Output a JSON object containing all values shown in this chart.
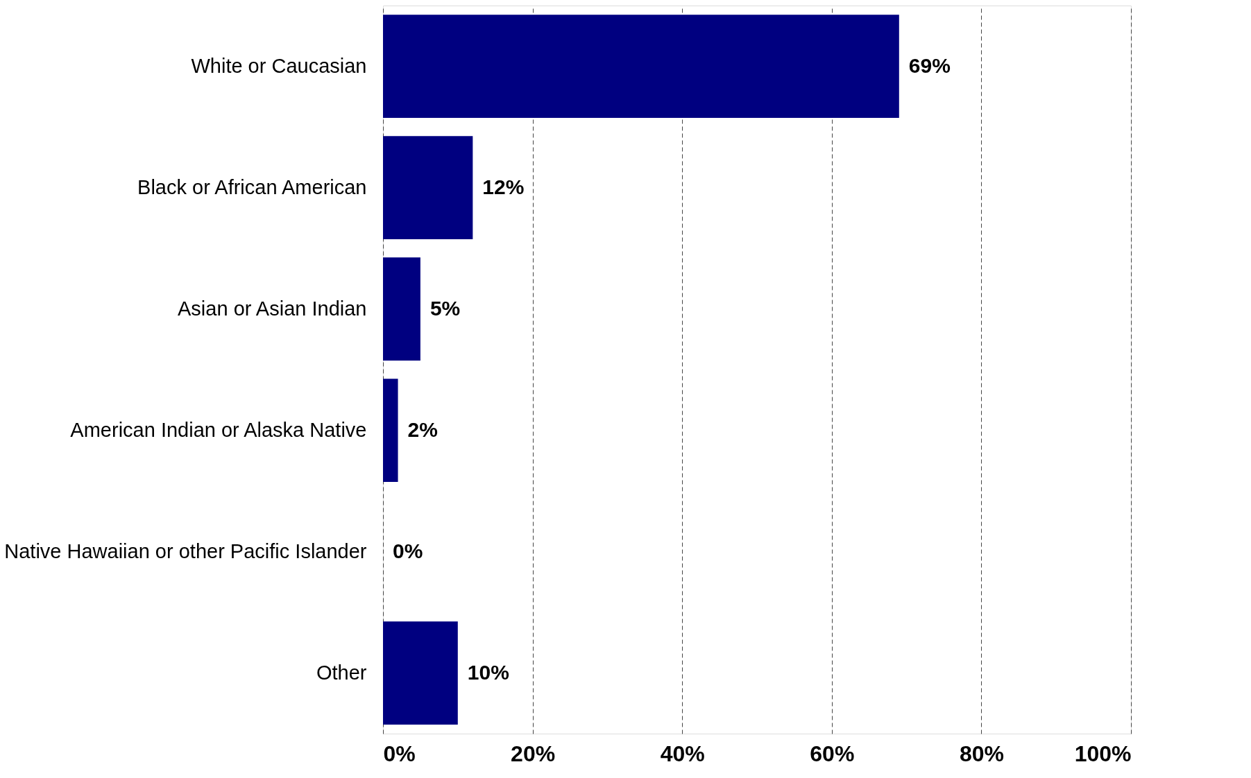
{
  "chart_data": {
    "type": "bar",
    "orientation": "horizontal",
    "categories": [
      "White or Caucasian",
      "Black or African American",
      "Asian or Asian Indian",
      "American Indian or Alaska Native",
      "Native Hawaiian or other Pacific Islander",
      "Other"
    ],
    "values": [
      69,
      12,
      5,
      2,
      0,
      10
    ],
    "value_labels": [
      "69%",
      "12%",
      "5%",
      "2%",
      "0%",
      "10%"
    ],
    "color": "#000080",
    "xlim": [
      0,
      100
    ],
    "xticks": [
      {
        "value": 0,
        "label": "0%"
      },
      {
        "value": 20,
        "label": "20%"
      },
      {
        "value": 40,
        "label": "40%"
      },
      {
        "value": 60,
        "label": "60%"
      },
      {
        "value": 80,
        "label": "80%"
      },
      {
        "value": 100,
        "label": "100%"
      }
    ],
    "grid": "x",
    "line_style": "dashed"
  }
}
